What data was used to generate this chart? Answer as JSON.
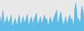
{
  "values": [
    42000,
    35000,
    40000,
    50000,
    32000,
    35000,
    38000,
    42000,
    33000,
    36000,
    39000,
    44000,
    30000,
    32000,
    37000,
    40000,
    34000,
    31000,
    38000,
    44000,
    35000,
    33000,
    39000,
    42000,
    32000,
    37000,
    40000,
    45000,
    31000,
    34000,
    38000,
    42000,
    33000,
    36000,
    40000,
    43000,
    46000,
    32000,
    35000,
    38000,
    42000,
    33000,
    36000,
    40000,
    44000,
    37000,
    40000,
    34000,
    31000,
    38000,
    42000,
    33000,
    36000,
    40000,
    43000,
    46000,
    50000,
    32000,
    36000,
    42000,
    48000,
    40000,
    34000,
    31000,
    38000,
    42000,
    33000,
    36000,
    40000,
    44000,
    37000,
    40000,
    34000,
    31000,
    52000,
    58000,
    44000,
    37000,
    40000,
    28000,
    46000,
    55000,
    48000,
    42000
  ],
  "line_color": "#4db3e6",
  "fill_color": "#5bbde8",
  "background_color": "#e8e8e8",
  "ylim_min": 25000,
  "ylim_max": 62000
}
